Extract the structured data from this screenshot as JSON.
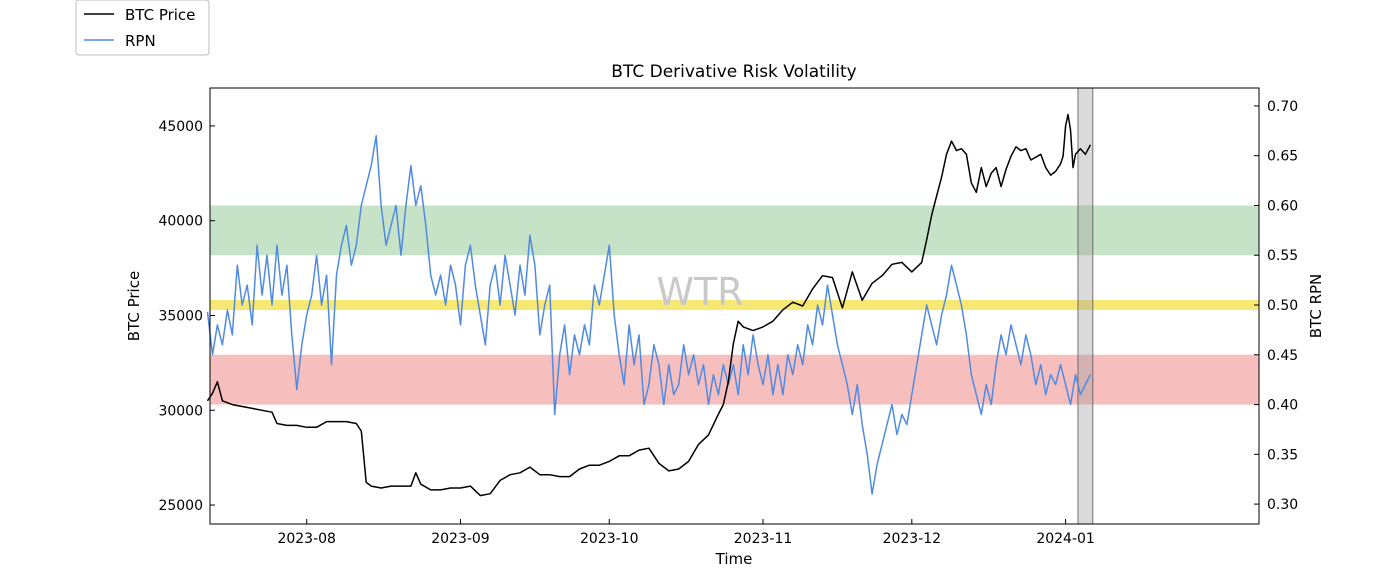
{
  "chart_data": {
    "type": "line",
    "title": "BTC Derivative Risk Volatility",
    "xlabel": "Time",
    "ylabel_left": "BTC Price",
    "ylabel_right": "BTC RPN",
    "watermark": "WTR",
    "legend": [
      {
        "name": "BTC Price",
        "color": "#000000"
      },
      {
        "name": "RPN",
        "color": "#4f8ae3"
      }
    ],
    "x_range_days": [
      -19.5,
      192
    ],
    "x_ticks": [
      {
        "label": "2023-08",
        "day": 0
      },
      {
        "label": "2023-09",
        "day": 31
      },
      {
        "label": "2023-10",
        "day": 61
      },
      {
        "label": "2023-11",
        "day": 92
      },
      {
        "label": "2023-12",
        "day": 122
      },
      {
        "label": "2024-01",
        "day": 153
      }
    ],
    "y_left": {
      "range": [
        24000,
        47000
      ],
      "ticks": [
        25000,
        30000,
        35000,
        40000,
        45000
      ]
    },
    "y_right": {
      "range": [
        0.28,
        0.718
      ],
      "ticks": [
        "0.30",
        "0.35",
        "0.40",
        "0.45",
        "0.50",
        "0.55",
        "0.60",
        "0.65",
        "0.70"
      ]
    },
    "bands": [
      {
        "name": "green-band",
        "from": 0.55,
        "to": 0.6,
        "color": "#a9d4a9"
      },
      {
        "name": "yellow-band",
        "from": 0.495,
        "to": 0.505,
        "color": "#f5e150"
      },
      {
        "name": "red-band",
        "from": 0.4,
        "to": 0.45,
        "color": "#f29b9b"
      }
    ],
    "highlight_span_days": [
      155.5,
      158.5
    ],
    "series": [
      {
        "name": "BTC Price",
        "axis": "left",
        "color": "#000000",
        "points": [
          [
            -20,
            30500
          ],
          [
            -19,
            30900
          ],
          [
            -18,
            31500
          ],
          [
            -17,
            30500
          ],
          [
            -15,
            30300
          ],
          [
            -13,
            30200
          ],
          [
            -11,
            30100
          ],
          [
            -9,
            30000
          ],
          [
            -7,
            29900
          ],
          [
            -6,
            29300
          ],
          [
            -4,
            29200
          ],
          [
            -2,
            29200
          ],
          [
            0,
            29100
          ],
          [
            2,
            29100
          ],
          [
            4,
            29400
          ],
          [
            6,
            29400
          ],
          [
            8,
            29400
          ],
          [
            10,
            29300
          ],
          [
            11,
            28900
          ],
          [
            12,
            26200
          ],
          [
            13,
            26000
          ],
          [
            15,
            25900
          ],
          [
            17,
            26000
          ],
          [
            19,
            26000
          ],
          [
            21,
            26000
          ],
          [
            22,
            26700
          ],
          [
            23,
            26100
          ],
          [
            25,
            25800
          ],
          [
            27,
            25800
          ],
          [
            29,
            25900
          ],
          [
            31,
            25900
          ],
          [
            33,
            26000
          ],
          [
            35,
            25500
          ],
          [
            37,
            25600
          ],
          [
            39,
            26300
          ],
          [
            41,
            26600
          ],
          [
            43,
            26700
          ],
          [
            45,
            27000
          ],
          [
            47,
            26600
          ],
          [
            49,
            26600
          ],
          [
            51,
            26500
          ],
          [
            53,
            26500
          ],
          [
            55,
            26900
          ],
          [
            57,
            27100
          ],
          [
            59,
            27100
          ],
          [
            61,
            27300
          ],
          [
            63,
            27600
          ],
          [
            65,
            27600
          ],
          [
            67,
            27900
          ],
          [
            69,
            28000
          ],
          [
            71,
            27200
          ],
          [
            73,
            26800
          ],
          [
            75,
            26900
          ],
          [
            77,
            27300
          ],
          [
            79,
            28200
          ],
          [
            81,
            28700
          ],
          [
            83,
            29800
          ],
          [
            84,
            30300
          ],
          [
            85,
            31500
          ],
          [
            86,
            33500
          ],
          [
            87,
            34700
          ],
          [
            88,
            34400
          ],
          [
            90,
            34200
          ],
          [
            92,
            34400
          ],
          [
            94,
            34700
          ],
          [
            96,
            35300
          ],
          [
            98,
            35700
          ],
          [
            100,
            35500
          ],
          [
            102,
            36400
          ],
          [
            104,
            37100
          ],
          [
            106,
            37000
          ],
          [
            108,
            35400
          ],
          [
            110,
            37300
          ],
          [
            112,
            35800
          ],
          [
            114,
            36700
          ],
          [
            116,
            37100
          ],
          [
            118,
            37700
          ],
          [
            120,
            37800
          ],
          [
            122,
            37300
          ],
          [
            124,
            37800
          ],
          [
            125,
            39000
          ],
          [
            126,
            40300
          ],
          [
            127,
            41300
          ],
          [
            128,
            42300
          ],
          [
            129,
            43500
          ],
          [
            130,
            44200
          ],
          [
            131,
            43700
          ],
          [
            132,
            43800
          ],
          [
            133,
            43500
          ],
          [
            134,
            42000
          ],
          [
            135,
            41500
          ],
          [
            136,
            42800
          ],
          [
            137,
            41800
          ],
          [
            138,
            42500
          ],
          [
            139,
            42800
          ],
          [
            140,
            41800
          ],
          [
            141,
            42700
          ],
          [
            142,
            43400
          ],
          [
            143,
            43900
          ],
          [
            144,
            43700
          ],
          [
            145,
            43800
          ],
          [
            146,
            43200
          ],
          [
            148,
            43500
          ],
          [
            149,
            42800
          ],
          [
            150,
            42400
          ],
          [
            151,
            42600
          ],
          [
            152,
            43000
          ],
          [
            152.5,
            43400
          ],
          [
            153,
            45000
          ],
          [
            153.5,
            45600
          ],
          [
            154,
            44800
          ],
          [
            154.5,
            42800
          ],
          [
            155,
            43500
          ],
          [
            156,
            43800
          ],
          [
            157,
            43500
          ],
          [
            158,
            44000
          ]
        ]
      },
      {
        "name": "RPN",
        "axis": "right",
        "color": "#4f8ae3",
        "points": [
          [
            -20,
            0.493
          ],
          [
            -19,
            0.45
          ],
          [
            -18,
            0.48
          ],
          [
            -17,
            0.46
          ],
          [
            -16,
            0.495
          ],
          [
            -15,
            0.47
          ],
          [
            -14,
            0.54
          ],
          [
            -13,
            0.5
          ],
          [
            -12,
            0.52
          ],
          [
            -11,
            0.48
          ],
          [
            -10,
            0.56
          ],
          [
            -9,
            0.51
          ],
          [
            -8,
            0.55
          ],
          [
            -7,
            0.5
          ],
          [
            -6,
            0.56
          ],
          [
            -5,
            0.51
          ],
          [
            -4,
            0.54
          ],
          [
            -3,
            0.47
          ],
          [
            -2,
            0.415
          ],
          [
            -1,
            0.46
          ],
          [
            0,
            0.49
          ],
          [
            1,
            0.51
          ],
          [
            2,
            0.55
          ],
          [
            3,
            0.5
          ],
          [
            4,
            0.53
          ],
          [
            5,
            0.44
          ],
          [
            6,
            0.53
          ],
          [
            7,
            0.56
          ],
          [
            8,
            0.58
          ],
          [
            9,
            0.54
          ],
          [
            10,
            0.56
          ],
          [
            11,
            0.6
          ],
          [
            12,
            0.62
          ],
          [
            13,
            0.64
          ],
          [
            14,
            0.67
          ],
          [
            15,
            0.6
          ],
          [
            16,
            0.56
          ],
          [
            17,
            0.58
          ],
          [
            18,
            0.6
          ],
          [
            19,
            0.55
          ],
          [
            20,
            0.6
          ],
          [
            21,
            0.64
          ],
          [
            22,
            0.6
          ],
          [
            23,
            0.62
          ],
          [
            24,
            0.58
          ],
          [
            25,
            0.53
          ],
          [
            26,
            0.51
          ],
          [
            27,
            0.53
          ],
          [
            28,
            0.5
          ],
          [
            29,
            0.54
          ],
          [
            30,
            0.52
          ],
          [
            31,
            0.48
          ],
          [
            32,
            0.54
          ],
          [
            33,
            0.56
          ],
          [
            34,
            0.52
          ],
          [
            35,
            0.49
          ],
          [
            36,
            0.46
          ],
          [
            37,
            0.52
          ],
          [
            38,
            0.54
          ],
          [
            39,
            0.5
          ],
          [
            40,
            0.55
          ],
          [
            41,
            0.52
          ],
          [
            42,
            0.49
          ],
          [
            43,
            0.54
          ],
          [
            44,
            0.51
          ],
          [
            45,
            0.57
          ],
          [
            46,
            0.54
          ],
          [
            47,
            0.47
          ],
          [
            48,
            0.5
          ],
          [
            49,
            0.52
          ],
          [
            50,
            0.39
          ],
          [
            51,
            0.45
          ],
          [
            52,
            0.48
          ],
          [
            53,
            0.43
          ],
          [
            54,
            0.47
          ],
          [
            55,
            0.45
          ],
          [
            56,
            0.48
          ],
          [
            57,
            0.46
          ],
          [
            58,
            0.52
          ],
          [
            59,
            0.5
          ],
          [
            60,
            0.53
          ],
          [
            61,
            0.56
          ],
          [
            62,
            0.49
          ],
          [
            63,
            0.45
          ],
          [
            64,
            0.42
          ],
          [
            65,
            0.48
          ],
          [
            66,
            0.44
          ],
          [
            67,
            0.47
          ],
          [
            68,
            0.4
          ],
          [
            69,
            0.42
          ],
          [
            70,
            0.46
          ],
          [
            71,
            0.44
          ],
          [
            72,
            0.4
          ],
          [
            73,
            0.44
          ],
          [
            74,
            0.41
          ],
          [
            75,
            0.42
          ],
          [
            76,
            0.46
          ],
          [
            77,
            0.43
          ],
          [
            78,
            0.45
          ],
          [
            79,
            0.42
          ],
          [
            80,
            0.44
          ],
          [
            81,
            0.4
          ],
          [
            82,
            0.43
          ],
          [
            83,
            0.41
          ],
          [
            84,
            0.44
          ],
          [
            85,
            0.42
          ],
          [
            86,
            0.44
          ],
          [
            87,
            0.41
          ],
          [
            88,
            0.46
          ],
          [
            89,
            0.43
          ],
          [
            90,
            0.47
          ],
          [
            91,
            0.44
          ],
          [
            92,
            0.42
          ],
          [
            93,
            0.45
          ],
          [
            94,
            0.41
          ],
          [
            95,
            0.44
          ],
          [
            96,
            0.41
          ],
          [
            97,
            0.45
          ],
          [
            98,
            0.43
          ],
          [
            99,
            0.46
          ],
          [
            100,
            0.44
          ],
          [
            101,
            0.48
          ],
          [
            102,
            0.46
          ],
          [
            103,
            0.5
          ],
          [
            104,
            0.48
          ],
          [
            105,
            0.52
          ],
          [
            106,
            0.49
          ],
          [
            107,
            0.46
          ],
          [
            108,
            0.44
          ],
          [
            109,
            0.42
          ],
          [
            110,
            0.39
          ],
          [
            111,
            0.42
          ],
          [
            112,
            0.38
          ],
          [
            113,
            0.35
          ],
          [
            114,
            0.31
          ],
          [
            115,
            0.34
          ],
          [
            116,
            0.36
          ],
          [
            117,
            0.38
          ],
          [
            118,
            0.4
          ],
          [
            119,
            0.37
          ],
          [
            120,
            0.39
          ],
          [
            121,
            0.38
          ],
          [
            122,
            0.41
          ],
          [
            123,
            0.44
          ],
          [
            124,
            0.47
          ],
          [
            125,
            0.5
          ],
          [
            126,
            0.48
          ],
          [
            127,
            0.46
          ],
          [
            128,
            0.49
          ],
          [
            129,
            0.51
          ],
          [
            130,
            0.54
          ],
          [
            131,
            0.52
          ],
          [
            132,
            0.5
          ],
          [
            133,
            0.47
          ],
          [
            134,
            0.43
          ],
          [
            135,
            0.41
          ],
          [
            136,
            0.39
          ],
          [
            137,
            0.42
          ],
          [
            138,
            0.4
          ],
          [
            139,
            0.44
          ],
          [
            140,
            0.47
          ],
          [
            141,
            0.45
          ],
          [
            142,
            0.48
          ],
          [
            143,
            0.46
          ],
          [
            144,
            0.44
          ],
          [
            145,
            0.47
          ],
          [
            146,
            0.45
          ],
          [
            147,
            0.42
          ],
          [
            148,
            0.44
          ],
          [
            149,
            0.41
          ],
          [
            150,
            0.43
          ],
          [
            151,
            0.42
          ],
          [
            152,
            0.44
          ],
          [
            153,
            0.42
          ],
          [
            154,
            0.4
          ],
          [
            155,
            0.43
          ],
          [
            156,
            0.41
          ],
          [
            157,
            0.42
          ],
          [
            158,
            0.43
          ]
        ]
      }
    ]
  }
}
